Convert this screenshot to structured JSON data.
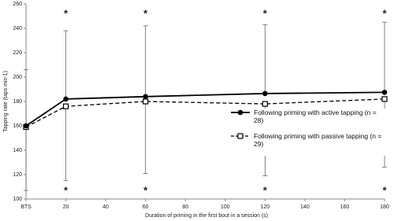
{
  "chart_data": {
    "type": "line",
    "x_label": "Duration of priming in the first bout in a session (s)",
    "y_label": "Tapping rate (taps min-1)",
    "x": [
      0,
      20,
      60,
      120,
      180
    ],
    "series": [
      {
        "name": "Following priming with active tapping (n = 28)",
        "color": "#000000",
        "marker": "circle",
        "dashed": false,
        "error_direction": "up",
        "values": [
          160,
          182,
          184,
          186.5,
          187.5
        ],
        "errors": [
          46,
          56,
          58,
          56.5,
          57.5
        ]
      },
      {
        "name": "Following priming with passive tapping (n = 29)",
        "color": "#000000",
        "marker": "square",
        "dashed": true,
        "error_direction": "down",
        "values": [
          159,
          176,
          180,
          178,
          182
        ],
        "errors": [
          52,
          61,
          59,
          59,
          56
        ]
      }
    ],
    "significance": {
      "text": "*",
      "x": [
        20,
        60,
        120,
        180
      ]
    },
    "xlim": [
      0,
      180
    ],
    "xticks": [
      {
        "value": 0,
        "label": "BTS"
      },
      20,
      40,
      60,
      80,
      100,
      120,
      140,
      160,
      180
    ],
    "ylim": [
      100,
      260
    ],
    "yticks": [
      100,
      120,
      140,
      160,
      180,
      200,
      220,
      240,
      260
    ],
    "legend": "right"
  }
}
